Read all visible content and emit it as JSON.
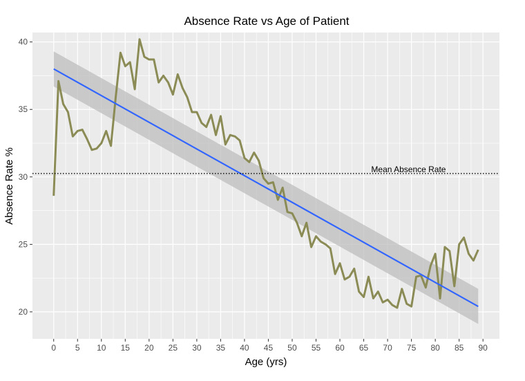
{
  "chart_data": {
    "type": "line",
    "title": "Absence Rate vs Age of Patient",
    "xlabel": "Age (yrs)",
    "ylabel": "Absence Rate %",
    "xlim": [
      -4.45,
      93.45
    ],
    "ylim": [
      18.0,
      40.7
    ],
    "xticks": [
      0,
      5,
      10,
      15,
      20,
      25,
      30,
      35,
      40,
      45,
      50,
      55,
      60,
      65,
      70,
      75,
      80,
      85,
      90
    ],
    "yticks": [
      20,
      25,
      30,
      35,
      40
    ],
    "grid": true,
    "colors": {
      "panel_bg": "#ebebeb",
      "grid": "#ffffff",
      "series": "#8b8b55",
      "trend": "#3366ff",
      "ribbon": "#bdbdbd"
    },
    "series": [
      {
        "name": "Absence Rate",
        "x": [
          0,
          1,
          2,
          3,
          4,
          5,
          6,
          7,
          8,
          9,
          10,
          11,
          12,
          13,
          14,
          15,
          16,
          17,
          18,
          19,
          20,
          21,
          22,
          23,
          24,
          25,
          26,
          27,
          28,
          29,
          30,
          31,
          32,
          33,
          34,
          35,
          36,
          37,
          38,
          39,
          40,
          41,
          42,
          43,
          44,
          45,
          46,
          47,
          48,
          49,
          50,
          51,
          52,
          53,
          54,
          55,
          56,
          57,
          58,
          59,
          60,
          61,
          62,
          63,
          64,
          65,
          66,
          67,
          68,
          69,
          70,
          71,
          72,
          73,
          74,
          75,
          76,
          77,
          78,
          79,
          80,
          81,
          82,
          83,
          84,
          85,
          86,
          87,
          88,
          89
        ],
        "values": [
          28.6,
          37.1,
          35.4,
          34.8,
          33.0,
          33.4,
          33.5,
          32.8,
          32.0,
          32.1,
          32.5,
          33.4,
          32.3,
          35.9,
          39.2,
          38.2,
          38.5,
          36.5,
          40.2,
          38.9,
          38.7,
          38.7,
          37.0,
          37.5,
          37.0,
          36.1,
          37.6,
          36.6,
          35.9,
          34.8,
          34.8,
          34.0,
          33.7,
          34.6,
          33.1,
          34.5,
          32.4,
          33.1,
          33.0,
          32.7,
          31.4,
          31.1,
          31.8,
          31.2,
          29.9,
          29.5,
          29.6,
          28.3,
          29.2,
          27.4,
          27.3,
          26.6,
          25.6,
          26.6,
          24.8,
          25.6,
          25.2,
          25.0,
          24.7,
          22.8,
          23.6,
          22.4,
          22.6,
          23.2,
          21.5,
          21.1,
          22.6,
          21.0,
          21.5,
          20.7,
          20.9,
          20.5,
          20.3,
          21.7,
          20.6,
          20.4,
          22.6,
          22.7,
          21.8,
          23.4,
          24.3,
          21.0,
          24.8,
          24.5,
          21.9,
          25.0,
          25.5,
          24.3,
          23.8,
          24.6
        ]
      },
      {
        "name": "Linear trend",
        "x": [
          0,
          89
        ],
        "values": [
          38.0,
          20.4
        ]
      }
    ],
    "confidence_band": {
      "x": [
        0,
        89
      ],
      "lower": [
        36.7,
        19.1
      ],
      "upper": [
        39.3,
        21.7
      ]
    },
    "reference_line": {
      "label": "Mean Absence Rate",
      "y": 30.25,
      "label_x": 74.4
    }
  }
}
